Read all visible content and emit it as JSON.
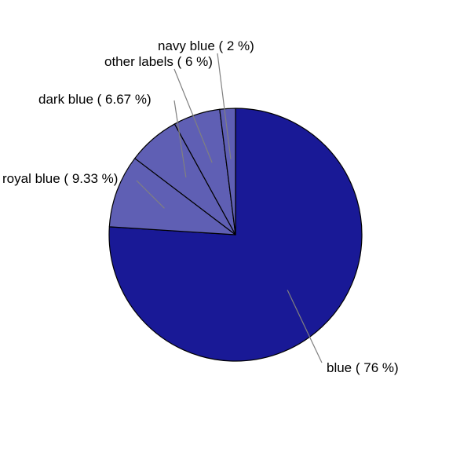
{
  "chart_data": {
    "type": "pie",
    "slices": [
      {
        "label": "blue ( 76 %)",
        "value": 76,
        "color": "#191996"
      },
      {
        "label": "royal blue ( 9.33 %)",
        "value": 9.33,
        "color": "#5f5fb4"
      },
      {
        "label": "dark blue ( 6.67 %)",
        "value": 6.67,
        "color": "#5f5fb4"
      },
      {
        "label": "other labels ( 6 %)",
        "value": 6,
        "color": "#5f5fb4"
      },
      {
        "label": "navy blue ( 2 %)",
        "value": 2,
        "color": "#5f5fb4"
      }
    ],
    "start": "12 o'clock",
    "direction": "clockwise",
    "legend": "none"
  }
}
